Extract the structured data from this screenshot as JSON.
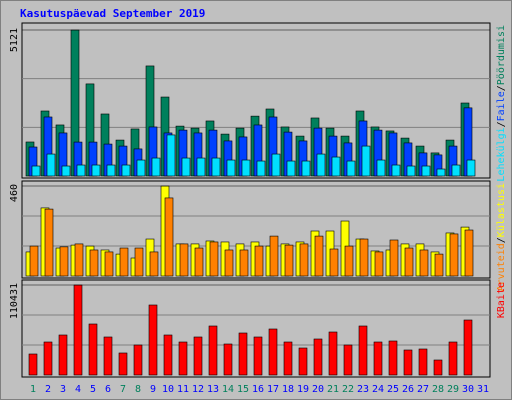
{
  "title": "Kasutuspäevad September 2019",
  "legend_separator": "/",
  "chart_data": [
    {
      "type": "bar",
      "ylim": [
        0,
        5121
      ],
      "yticks": [
        5121
      ],
      "series": [
        {
          "name": "Pöördumisi",
          "color": "#00805c",
          "values": [
            1193,
            2280,
            1790,
            5121,
            3230,
            2175,
            1260,
            1650,
            3860,
            2770,
            1750,
            1680,
            1930,
            1470,
            1680,
            2100,
            2350,
            1720,
            1400,
            2035,
            1680,
            1400,
            2280,
            1720,
            1580,
            1330,
            1050,
            810,
            1260,
            2560,
            0
          ]
        },
        {
          "name": "Faile",
          "color": "#0040ff",
          "values": [
            1017,
            2070,
            1510,
            1190,
            1190,
            1120,
            1050,
            950,
            1720,
            1510,
            1610,
            1510,
            1610,
            1230,
            1370,
            1790,
            2070,
            1540,
            1230,
            1680,
            1400,
            1160,
            1930,
            1610,
            1510,
            1160,
            810,
            740,
            1050,
            2390,
            0
          ]
        },
        {
          "name": "Lehekülgi",
          "color": "#00e0ff",
          "values": [
            350,
            770,
            350,
            385,
            385,
            385,
            385,
            560,
            630,
            1440,
            630,
            630,
            630,
            560,
            560,
            525,
            770,
            525,
            525,
            770,
            665,
            525,
            1050,
            560,
            385,
            350,
            350,
            245,
            385,
            560,
            0
          ]
        }
      ]
    },
    {
      "type": "bar",
      "ylim": [
        0,
        460
      ],
      "yticks": [
        460
      ],
      "series": [
        {
          "name": "Külastusi",
          "color": "#ffff00",
          "values": [
            123,
            348,
            143,
            158,
            153,
            133,
            112,
            92,
            189,
            460,
            164,
            164,
            179,
            174,
            164,
            174,
            153,
            164,
            174,
            230,
            230,
            281,
            189,
            128,
            133,
            164,
            164,
            123,
            220,
            250,
            0
          ]
        },
        {
          "name": "Arvuteid",
          "color": "#ff8000",
          "values": [
            153,
            342,
            149,
            164,
            133,
            123,
            143,
            143,
            123,
            399,
            164,
            143,
            174,
            133,
            133,
            153,
            204,
            158,
            164,
            204,
            138,
            153,
            189,
            123,
            184,
            143,
            133,
            112,
            215,
            235,
            0
          ]
        }
      ]
    },
    {
      "type": "bar",
      "ylim": [
        0,
        110431
      ],
      "yticks": [
        110431
      ],
      "categories": [
        "1",
        "2",
        "3",
        "4",
        "5",
        "6",
        "7",
        "8",
        "9",
        "10",
        "11",
        "12",
        "13",
        "14",
        "15",
        "16",
        "17",
        "18",
        "19",
        "20",
        "21",
        "22",
        "23",
        "24",
        "25",
        "26",
        "27",
        "28",
        "29",
        "30",
        "31"
      ],
      "label_colors": [
        "#00805c",
        "#0000ff",
        "#0000ff",
        "#0000ff",
        "#0000ff",
        "#0000ff",
        "#00805c",
        "#00805c",
        "#0000ff",
        "#0000ff",
        "#0000ff",
        "#0000ff",
        "#0000ff",
        "#00805c",
        "#00805c",
        "#0000ff",
        "#0000ff",
        "#0000ff",
        "#0000ff",
        "#0000ff",
        "#00805c",
        "#00805c",
        "#0000ff",
        "#0000ff",
        "#0000ff",
        "#0000ff",
        "#0000ff",
        "#00805c",
        "#00805c",
        "#0000ff",
        "#0000ff"
      ],
      "series": [
        {
          "name": "KBaite",
          "color": "#ff0000",
          "values": [
            25770,
            40490,
            49080,
            110431,
            62580,
            46630,
            27000,
            36810,
            85890,
            49080,
            40490,
            46630,
            60120,
            38040,
            51530,
            46630,
            56440,
            40490,
            33130,
            44170,
            52760,
            36810,
            60120,
            40490,
            41720,
            30680,
            31900,
            18400,
            40490,
            67480,
            0
          ]
        }
      ]
    }
  ]
}
